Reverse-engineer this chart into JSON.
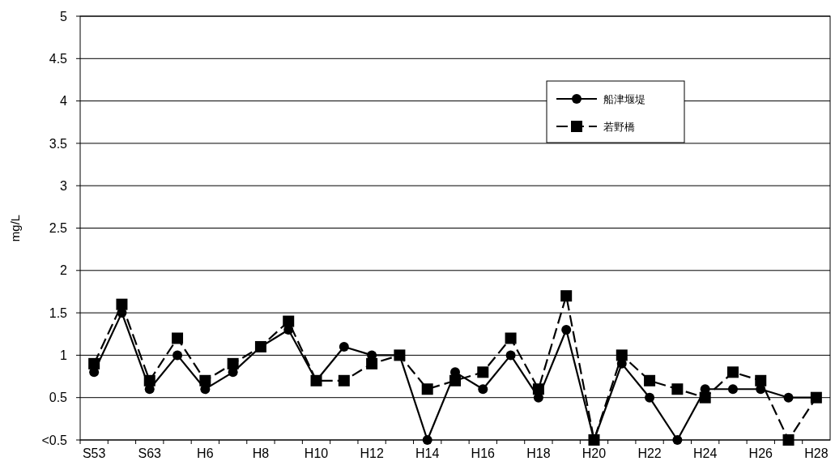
{
  "chart_data": {
    "type": "line",
    "ylabel": "mg/L",
    "categories": [
      "S53",
      null,
      "S63",
      null,
      "H6",
      null,
      "H8",
      null,
      "H10",
      null,
      "H12",
      null,
      "H14",
      null,
      "H16",
      null,
      "H18",
      null,
      "H20",
      null,
      "H22",
      null,
      "H24",
      null,
      "H26",
      null,
      "H28"
    ],
    "series": [
      {
        "name": "船津堰堤",
        "color": "#000000",
        "marker": "circle",
        "line_style": "solid",
        "values": [
          0.8,
          1.5,
          0.6,
          1.0,
          0.6,
          0.8,
          1.1,
          1.3,
          0.7,
          1.1,
          1.0,
          1.0,
          0,
          0.8,
          0.6,
          1.0,
          0.5,
          1.3,
          0,
          0.9,
          0.5,
          0,
          0.6,
          0.6,
          0.6,
          0.5,
          0.5
        ]
      },
      {
        "name": "若野橋",
        "color": "#000000",
        "marker": "square",
        "line_style": "dashed",
        "values": [
          0.9,
          1.6,
          0.7,
          1.2,
          0.7,
          0.9,
          1.1,
          1.4,
          0.7,
          0.7,
          0.9,
          1.0,
          0.6,
          0.7,
          0.8,
          1.2,
          0.6,
          1.7,
          0,
          1.0,
          0.7,
          0.6,
          0.5,
          0.8,
          0.7,
          0,
          0.5
        ]
      }
    ],
    "ylim": [
      0,
      5
    ],
    "yticks": [
      {
        "value": 0,
        "label": "<0.5"
      },
      0.5,
      1,
      1.5,
      2,
      2.5,
      3,
      3.5,
      4,
      4.5,
      5
    ],
    "grid": "y",
    "legend": "top right"
  }
}
